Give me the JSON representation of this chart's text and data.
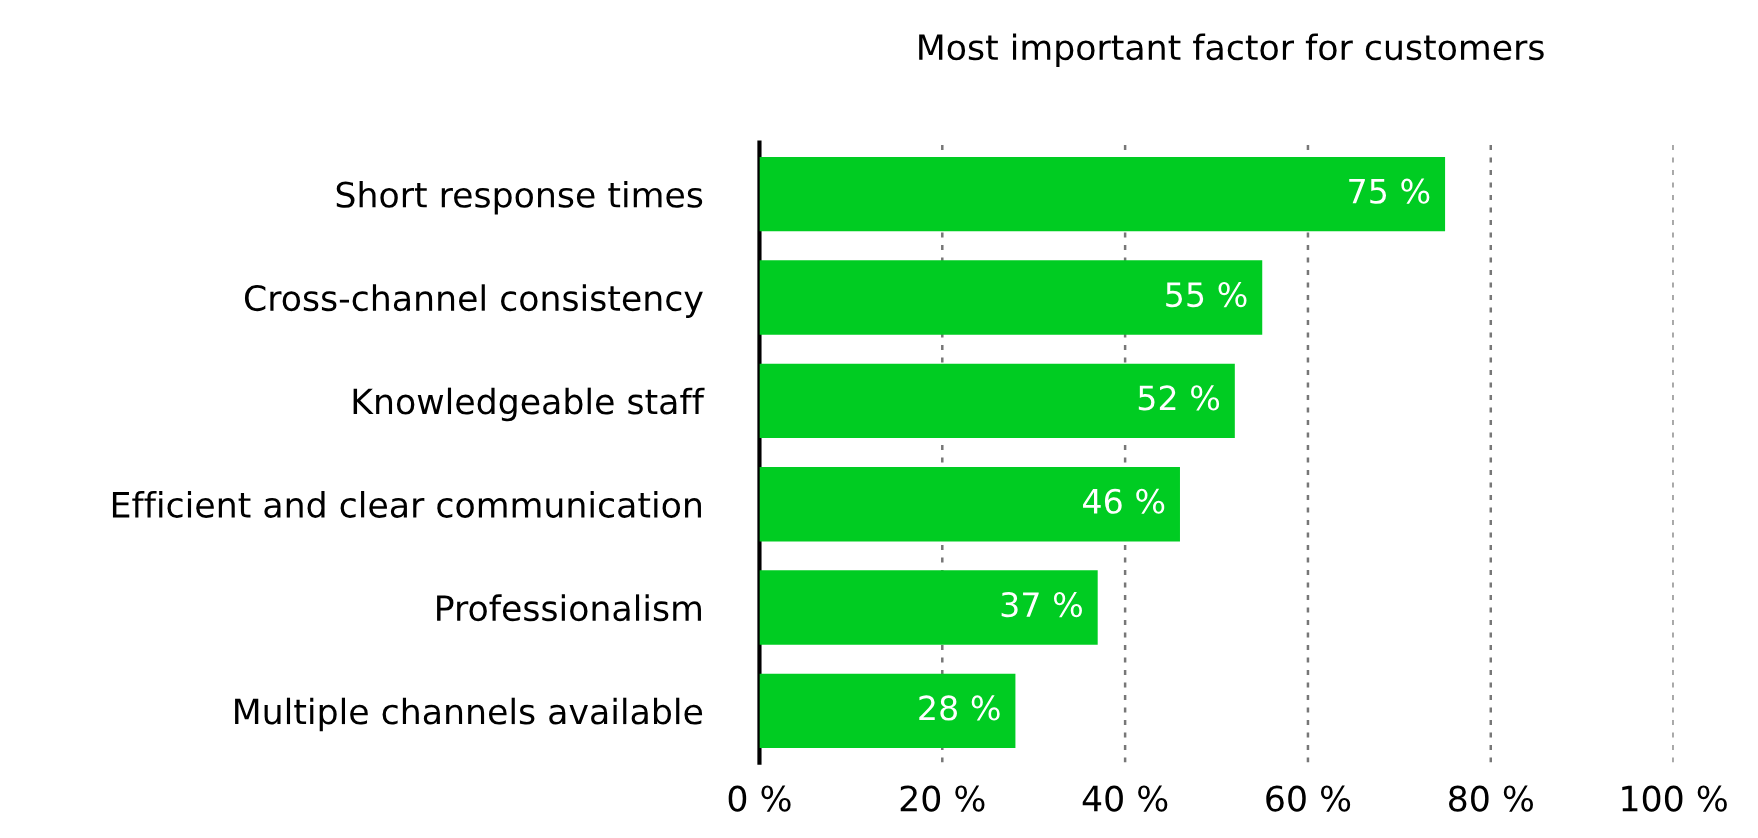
{
  "chart_data": {
    "type": "bar",
    "orientation": "horizontal",
    "title": "Most important factor for customers",
    "categories": [
      "Short response times",
      "Cross-channel consistency",
      "Knowledgeable staff",
      "Efficient and clear communication",
      "Professionalism",
      "Multiple channels available"
    ],
    "values": [
      75,
      55,
      52,
      46,
      37,
      28
    ],
    "value_labels": [
      "75 %",
      "55 %",
      "52 %",
      "46 %",
      "37 %",
      "28 %"
    ],
    "color": "#00cc22",
    "xlim": [
      0,
      100
    ],
    "xticks": [
      {
        "value": 0,
        "label": "0 %"
      },
      {
        "value": 20,
        "label": "20 %"
      },
      {
        "value": 40,
        "label": "40 %"
      },
      {
        "value": 60,
        "label": "60 %"
      },
      {
        "value": 80,
        "label": "80 %"
      },
      {
        "value": 100,
        "label": "100 %"
      }
    ],
    "grid": "x",
    "legend": false
  }
}
